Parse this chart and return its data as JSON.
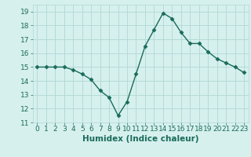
{
  "x": [
    0,
    1,
    2,
    3,
    4,
    5,
    6,
    7,
    8,
    9,
    10,
    11,
    12,
    13,
    14,
    15,
    16,
    17,
    18,
    19,
    20,
    21,
    22,
    23
  ],
  "y": [
    15.0,
    15.0,
    15.0,
    15.0,
    14.8,
    14.5,
    14.1,
    13.3,
    12.8,
    11.5,
    12.5,
    14.5,
    16.5,
    17.7,
    18.9,
    18.5,
    17.5,
    16.7,
    16.7,
    16.1,
    15.6,
    15.3,
    15.0,
    14.6
  ],
  "ylim": [
    11,
    19.5
  ],
  "yticks": [
    11,
    12,
    13,
    14,
    15,
    16,
    17,
    18,
    19
  ],
  "xlim": [
    -0.5,
    23.5
  ],
  "xticks": [
    0,
    1,
    2,
    3,
    4,
    5,
    6,
    7,
    8,
    9,
    10,
    11,
    12,
    13,
    14,
    15,
    16,
    17,
    18,
    19,
    20,
    21,
    22,
    23
  ],
  "xlabel": "Humidex (Indice chaleur)",
  "line_color": "#1a6b5a",
  "marker": "D",
  "marker_size": 2.5,
  "bg_color": "#d6f0ee",
  "grid_color": "#b0d8d4",
  "text_color": "#1a6b5a",
  "xlabel_fontsize": 7.5,
  "tick_fontsize": 6.5
}
